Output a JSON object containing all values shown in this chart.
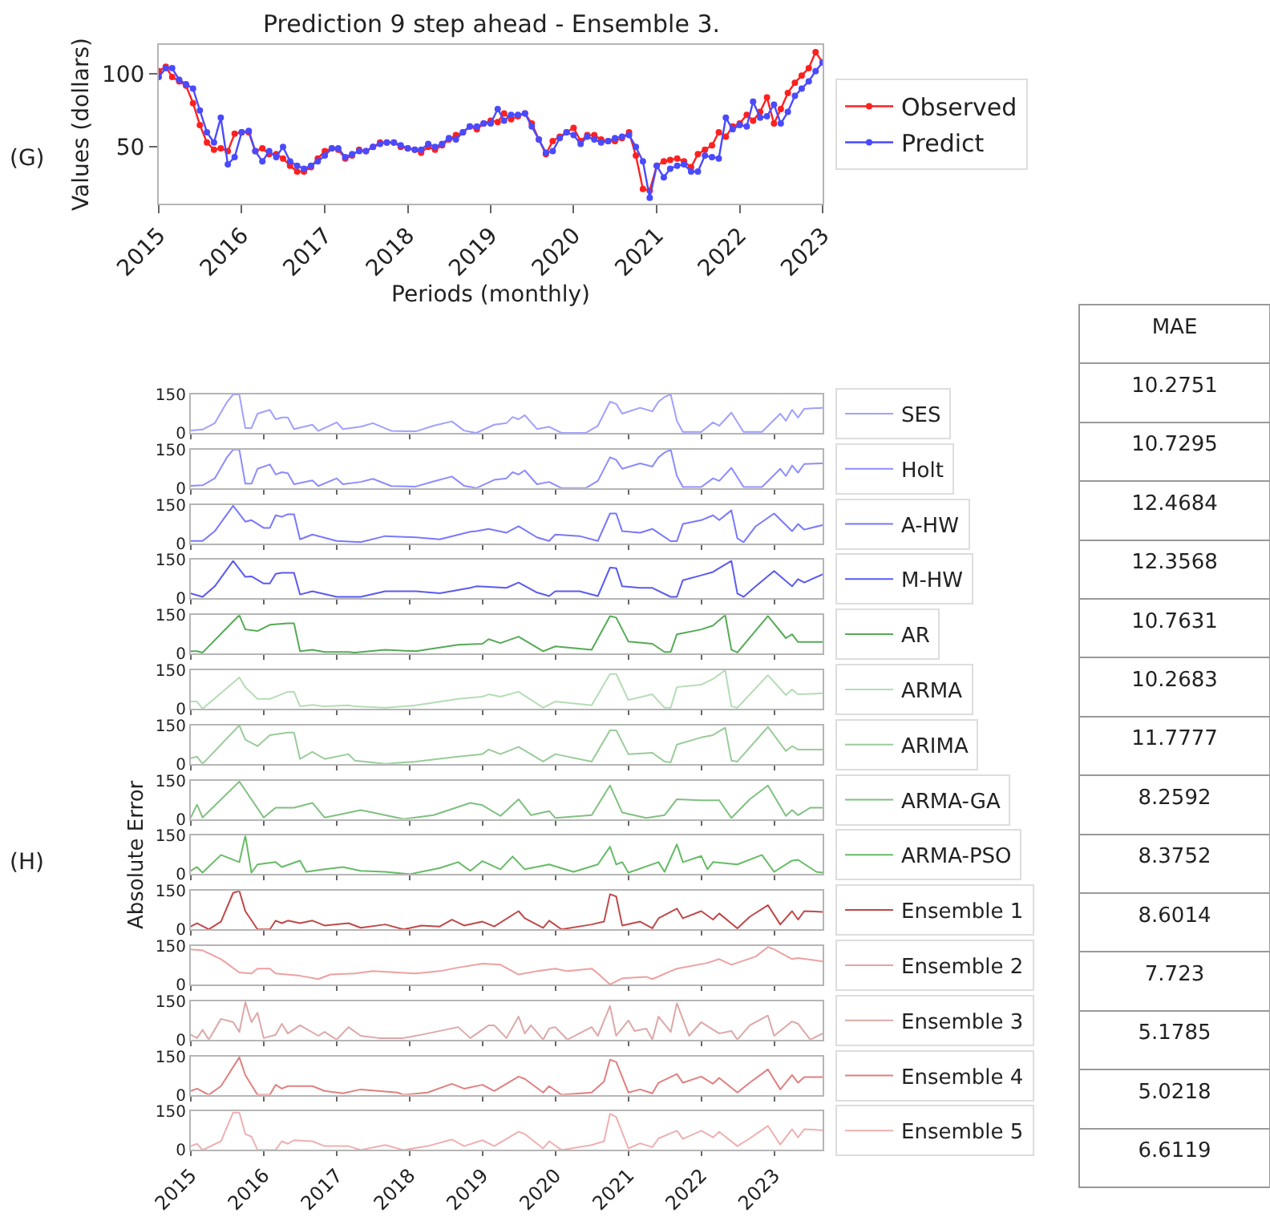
{
  "chart_data": [
    {
      "type": "line",
      "title": "Prediction 9 step ahead - Ensemble 3.",
      "xlabel": "Periods (monthly)",
      "ylabel": "Values (dollars)",
      "annotations": [
        "(G)"
      ],
      "marker": "circle",
      "legend": "right",
      "x": [
        "2015-01",
        "2015-02",
        "2015-03",
        "2015-04",
        "2015-05",
        "2015-06",
        "2015-07",
        "2015-08",
        "2015-09",
        "2015-10",
        "2015-11",
        "2015-12",
        "2016-01",
        "2016-02",
        "2016-03",
        "2016-04",
        "2016-05",
        "2016-06",
        "2016-07",
        "2016-08",
        "2016-09",
        "2016-10",
        "2016-11",
        "2016-12",
        "2017-01",
        "2017-02",
        "2017-03",
        "2017-04",
        "2017-05",
        "2017-06",
        "2017-07",
        "2017-08",
        "2017-09",
        "2017-10",
        "2017-11",
        "2017-12",
        "2018-01",
        "2018-02",
        "2018-03",
        "2018-04",
        "2018-05",
        "2018-06",
        "2018-07",
        "2018-08",
        "2018-09",
        "2018-10",
        "2018-11",
        "2018-12",
        "2019-01",
        "2019-02",
        "2019-03",
        "2019-04",
        "2019-05",
        "2019-06",
        "2019-07",
        "2019-08",
        "2019-09",
        "2019-10",
        "2019-11",
        "2019-12",
        "2020-01",
        "2020-02",
        "2020-03",
        "2020-04",
        "2020-05",
        "2020-06",
        "2020-07",
        "2020-08",
        "2020-09",
        "2020-10",
        "2020-11",
        "2020-12",
        "2021-01",
        "2021-02",
        "2021-03",
        "2021-04",
        "2021-05",
        "2021-06",
        "2021-07",
        "2021-08",
        "2021-09",
        "2021-10",
        "2021-11",
        "2021-12",
        "2022-01",
        "2022-02",
        "2022-03",
        "2022-04",
        "2022-05",
        "2022-06",
        "2022-07",
        "2022-08",
        "2022-09",
        "2022-10",
        "2022-11",
        "2022-12",
        "2023-01"
      ],
      "series": [
        {
          "name": "Observed",
          "color": "#ff2020",
          "values": [
            102,
            105,
            98,
            95,
            92,
            80,
            65,
            53,
            48,
            49,
            47,
            59,
            60,
            60,
            47,
            49,
            45,
            45,
            42,
            37,
            33,
            33,
            36,
            42,
            47,
            49,
            48,
            42,
            44,
            48,
            47,
            50,
            53,
            53,
            53,
            50,
            49,
            48,
            46,
            50,
            48,
            51,
            55,
            58,
            60,
            64,
            62,
            66,
            68,
            67,
            73,
            69,
            71,
            73,
            66,
            55,
            45,
            54,
            57,
            60,
            63,
            54,
            58,
            58,
            55,
            54,
            54,
            56,
            60,
            44,
            21,
            20,
            37,
            40,
            41,
            42,
            40,
            36,
            45,
            48,
            51,
            60,
            57,
            64,
            66,
            72,
            68,
            74,
            84,
            66,
            76,
            87,
            94,
            99,
            104,
            115,
            108
          ]
        },
        {
          "name": "Predict",
          "color": "#4a4aff",
          "values": [
            98,
            104,
            104,
            96,
            93,
            90,
            75,
            60,
            53,
            70,
            38,
            43,
            60,
            61,
            47,
            40,
            47,
            43,
            50,
            40,
            37,
            35,
            37,
            40,
            44,
            49,
            49,
            43,
            45,
            47,
            47,
            50,
            52,
            53,
            53,
            51,
            49,
            48,
            48,
            52,
            50,
            52,
            56,
            55,
            60,
            64,
            64,
            66,
            66,
            76,
            68,
            72,
            72,
            73,
            64,
            55,
            46,
            47,
            56,
            60,
            58,
            52,
            57,
            55,
            53,
            54,
            56,
            57,
            58,
            50,
            40,
            15,
            37,
            29,
            35,
            37,
            38,
            33,
            33,
            44,
            43,
            42,
            70,
            62,
            65,
            64,
            81,
            70,
            71,
            79,
            66,
            74,
            85,
            90,
            95,
            102,
            108
          ]
        }
      ],
      "xlim": [
        "2015-01",
        "2023-01"
      ],
      "xticks": [
        "2015",
        "2016",
        "2017",
        "2018",
        "2019",
        "2020",
        "2021",
        "2022",
        "2023"
      ],
      "ylim": [
        11,
        120
      ],
      "yticks": [
        50,
        100
      ]
    },
    {
      "type": "line",
      "legend": "right",
      "tick_labels": "y",
      "xlim": [
        "2015-01",
        "2023-09"
      ],
      "xticks": [
        "2015",
        "2016",
        "2017",
        "2018",
        "2019",
        "2020",
        "2021",
        "2022",
        "2023"
      ],
      "ylim": [
        0,
        150
      ],
      "yticks": [
        0,
        150
      ],
      "x": [
        "2015-01",
        "2015-03",
        "2015-05",
        "2015-07",
        "2015-08",
        "2015-09",
        "2015-10",
        "2015-11",
        "2015-12",
        "2016-02",
        "2016-03",
        "2016-04",
        "2016-05",
        "2016-06",
        "2016-09",
        "2016-10",
        "2017-01",
        "2017-02",
        "2017-05",
        "2017-07",
        "2017-10",
        "2018-02",
        "2018-05",
        "2018-08",
        "2018-10",
        "2018-12",
        "2019-03",
        "2019-05",
        "2019-06",
        "2019-07",
        "2019-08",
        "2019-10",
        "2019-12",
        "2020-02",
        "2020-06",
        "2020-08",
        "2020-10",
        "2020-11",
        "2020-12",
        "2021-03",
        "2021-05",
        "2021-06",
        "2021-07",
        "2021-08",
        "2021-09",
        "2021-10",
        "2022-01",
        "2022-03",
        "2022-04",
        "2022-06",
        "2022-08",
        "2022-11",
        "2023-02",
        "2023-03",
        "2023-04",
        "2023-05",
        "2023-06",
        "2023-09"
      ],
      "series": [
        {
          "name": "SES",
          "color": "#a0a0ff",
          "values": [
            9,
            13,
            38,
            120,
            150,
            150,
            19,
            19,
            75,
            90,
            53,
            60,
            60,
            15,
            32,
            8,
            41,
            15,
            24,
            38,
            8,
            6,
            28,
            45,
            9,
            0,
            32,
            38,
            62,
            53,
            69,
            15,
            24,
            0,
            0,
            28,
            122,
            113,
            75,
            98,
            84,
            122,
            140,
            150,
            47,
            4,
            4,
            41,
            28,
            79,
            4,
            4,
            75,
            47,
            90,
            60,
            94,
            98
          ]
        }
      ]
    },
    {
      "type": "line",
      "legend": "right",
      "tick_labels": "y",
      "xlim": [
        "2015-01",
        "2023-09"
      ],
      "xticks": [
        "2015",
        "2016",
        "2017",
        "2018",
        "2019",
        "2020",
        "2021",
        "2022",
        "2023"
      ],
      "ylim": [
        0,
        150
      ],
      "yticks": [
        0,
        150
      ],
      "x": [
        "2015-01",
        "2015-03",
        "2015-05",
        "2015-07",
        "2015-08",
        "2015-09",
        "2015-10",
        "2015-11",
        "2015-12",
        "2016-02",
        "2016-03",
        "2016-04",
        "2016-05",
        "2016-06",
        "2016-09",
        "2016-10",
        "2017-01",
        "2017-02",
        "2017-05",
        "2017-07",
        "2017-10",
        "2018-02",
        "2018-05",
        "2018-08",
        "2018-10",
        "2018-12",
        "2019-03",
        "2019-05",
        "2019-06",
        "2019-07",
        "2019-08",
        "2019-10",
        "2019-12",
        "2020-02",
        "2020-06",
        "2020-08",
        "2020-10",
        "2020-11",
        "2020-12",
        "2021-03",
        "2021-05",
        "2021-06",
        "2021-07",
        "2021-08",
        "2021-09",
        "2021-10",
        "2022-01",
        "2022-03",
        "2022-04",
        "2022-06",
        "2022-08",
        "2022-11",
        "2023-02",
        "2023-03",
        "2023-04",
        "2023-05",
        "2023-06",
        "2023-09"
      ],
      "series": [
        {
          "name": "Holt",
          "color": "#8c8cff",
          "values": [
            9,
            11,
            38,
            120,
            150,
            150,
            17,
            17,
            75,
            92,
            53,
            62,
            58,
            15,
            30,
            8,
            38,
            15,
            24,
            36,
            8,
            6,
            26,
            45,
            9,
            0,
            32,
            38,
            62,
            53,
            69,
            15,
            24,
            0,
            0,
            28,
            120,
            110,
            75,
            96,
            84,
            120,
            138,
            150,
            47,
            4,
            4,
            38,
            28,
            79,
            4,
            4,
            75,
            47,
            88,
            60,
            94,
            96
          ]
        }
      ]
    },
    {
      "type": "line",
      "legend": "right",
      "tick_labels": "y",
      "xlim": [
        "2015-01",
        "2023-09"
      ],
      "xticks": [
        "2015",
        "2016",
        "2017",
        "2018",
        "2019",
        "2020",
        "2021",
        "2022",
        "2023"
      ],
      "ylim": [
        0,
        150
      ],
      "yticks": [
        0,
        150
      ],
      "x": [
        "2015-01",
        "2015-03",
        "2015-05",
        "2015-08",
        "2015-10",
        "2015-11",
        "2016-01",
        "2016-02",
        "2016-03",
        "2016-04",
        "2016-05",
        "2016-06",
        "2016-07",
        "2016-09",
        "2017-01",
        "2017-05",
        "2017-09",
        "2018-02",
        "2018-06",
        "2018-11",
        "2018-12",
        "2019-02",
        "2019-05",
        "2019-07",
        "2019-10",
        "2019-12",
        "2020-01",
        "2020-05",
        "2020-08",
        "2020-10",
        "2020-11",
        "2020-12",
        "2021-03",
        "2021-05",
        "2021-08",
        "2021-09",
        "2021-10",
        "2022-01",
        "2022-03",
        "2022-04",
        "2022-06",
        "2022-07",
        "2022-08",
        "2022-10",
        "2023-01",
        "2023-04",
        "2023-05",
        "2023-06",
        "2023-09"
      ],
      "series": [
        {
          "name": "A-HW",
          "color": "#7878ff",
          "values": [
            9,
            9,
            47,
            146,
            84,
            90,
            60,
            60,
            109,
            103,
            113,
            113,
            15,
            34,
            9,
            4,
            28,
            23,
            15,
            45,
            47,
            56,
            41,
            66,
            23,
            9,
            34,
            28,
            9,
            116,
            116,
            47,
            41,
            56,
            8,
            8,
            75,
            90,
            109,
            90,
            128,
            19,
            4,
            66,
            116,
            47,
            75,
            53,
            71
          ]
        }
      ]
    },
    {
      "type": "line",
      "legend": "right",
      "tick_labels": "y",
      "xlim": [
        "2015-01",
        "2023-09"
      ],
      "xticks": [
        "2015",
        "2016",
        "2017",
        "2018",
        "2019",
        "2020",
        "2021",
        "2022",
        "2023"
      ],
      "ylim": [
        0,
        150
      ],
      "yticks": [
        0,
        150
      ],
      "x": [
        "2015-01",
        "2015-03",
        "2015-05",
        "2015-08",
        "2015-10",
        "2015-11",
        "2016-01",
        "2016-02",
        "2016-03",
        "2016-04",
        "2016-05",
        "2016-06",
        "2016-07",
        "2016-09",
        "2017-01",
        "2017-05",
        "2017-09",
        "2018-02",
        "2018-06",
        "2018-11",
        "2018-12",
        "2019-02",
        "2019-05",
        "2019-07",
        "2019-10",
        "2019-12",
        "2020-01",
        "2020-05",
        "2020-08",
        "2020-10",
        "2020-11",
        "2020-12",
        "2021-03",
        "2021-05",
        "2021-08",
        "2021-09",
        "2021-10",
        "2022-01",
        "2022-03",
        "2022-04",
        "2022-06",
        "2022-07",
        "2022-08",
        "2022-10",
        "2023-01",
        "2023-04",
        "2023-05",
        "2023-06",
        "2023-09"
      ],
      "series": [
        {
          "name": "M-HW",
          "color": "#5a5af0",
          "values": [
            19,
            6,
            47,
            146,
            84,
            86,
            58,
            58,
            96,
            100,
            100,
            100,
            15,
            28,
            6,
            6,
            28,
            28,
            20,
            41,
            47,
            45,
            41,
            62,
            23,
            9,
            28,
            28,
            9,
            120,
            118,
            47,
            41,
            41,
            6,
            6,
            71,
            90,
            103,
            118,
            146,
            19,
            6,
            47,
            107,
            47,
            75,
            62,
            94
          ]
        }
      ]
    },
    {
      "type": "line",
      "legend": "right",
      "tick_labels": "y",
      "xlim": [
        "2015-01",
        "2023-09"
      ],
      "xticks": [
        "2015",
        "2016",
        "2017",
        "2018",
        "2019",
        "2020",
        "2021",
        "2022",
        "2023"
      ],
      "ylim": [
        0,
        150
      ],
      "yticks": [
        0,
        150
      ],
      "x": [
        "2015-01",
        "2015-02",
        "2015-03",
        "2015-09",
        "2015-10",
        "2015-12",
        "2016-02",
        "2016-05",
        "2016-06",
        "2016-07",
        "2016-09",
        "2016-11",
        "2017-03",
        "2017-04",
        "2017-09",
        "2018-02",
        "2018-09",
        "2019-01",
        "2019-02",
        "2019-04",
        "2019-07",
        "2019-11",
        "2020-01",
        "2020-07",
        "2020-10",
        "2020-11",
        "2021-01",
        "2021-05",
        "2021-07",
        "2021-08",
        "2021-09",
        "2022-01",
        "2022-03",
        "2022-05",
        "2022-06",
        "2022-07",
        "2022-12",
        "2023-03",
        "2023-04",
        "2023-05",
        "2023-09"
      ],
      "series": [
        {
          "name": "AR",
          "color": "#55aa55",
          "values": [
            9,
            9,
            4,
            150,
            94,
            88,
            112,
            118,
            118,
            9,
            15,
            6,
            6,
            4,
            15,
            9,
            34,
            38,
            56,
            41,
            66,
            9,
            28,
            15,
            146,
            140,
            47,
            38,
            6,
            6,
            75,
            94,
            109,
            150,
            15,
            4,
            146,
            60,
            75,
            45,
            45
          ]
        }
      ]
    },
    {
      "type": "line",
      "legend": "right",
      "tick_labels": "y",
      "xlim": [
        "2015-01",
        "2023-09"
      ],
      "xticks": [
        "2015",
        "2016",
        "2017",
        "2018",
        "2019",
        "2020",
        "2021",
        "2022",
        "2023"
      ],
      "ylim": [
        0,
        150
      ],
      "yticks": [
        0,
        150
      ],
      "x": [
        "2015-01",
        "2015-02",
        "2015-03",
        "2015-09",
        "2015-10",
        "2015-12",
        "2016-02",
        "2016-05",
        "2016-06",
        "2016-07",
        "2016-09",
        "2016-11",
        "2017-03",
        "2017-04",
        "2017-09",
        "2018-02",
        "2018-09",
        "2019-01",
        "2019-02",
        "2019-04",
        "2019-07",
        "2019-11",
        "2020-01",
        "2020-07",
        "2020-10",
        "2020-11",
        "2021-01",
        "2021-05",
        "2021-07",
        "2021-08",
        "2021-09",
        "2022-01",
        "2022-03",
        "2022-05",
        "2022-06",
        "2022-07",
        "2022-12",
        "2023-03",
        "2023-04",
        "2023-05",
        "2023-09"
      ],
      "series": [
        {
          "name": "ARMA",
          "color": "#b5dcb5",
          "values": [
            28,
            28,
            0,
            122,
            84,
            38,
            38,
            66,
            66,
            9,
            15,
            9,
            13,
            9,
            4,
            13,
            38,
            47,
            56,
            47,
            66,
            4,
            28,
            13,
            135,
            135,
            34,
            56,
            4,
            4,
            84,
            94,
            116,
            150,
            9,
            4,
            131,
            53,
            75,
            56,
            60
          ]
        }
      ]
    },
    {
      "type": "line",
      "legend": "right",
      "tick_labels": "y",
      "xlim": [
        "2015-01",
        "2023-09"
      ],
      "xticks": [
        "2015",
        "2016",
        "2017",
        "2018",
        "2019",
        "2020",
        "2021",
        "2022",
        "2023"
      ],
      "ylim": [
        0,
        150
      ],
      "yticks": [
        0,
        150
      ],
      "x": [
        "2015-01",
        "2015-02",
        "2015-03",
        "2015-09",
        "2015-10",
        "2015-12",
        "2016-02",
        "2016-05",
        "2016-06",
        "2016-07",
        "2016-09",
        "2016-11",
        "2017-03",
        "2017-04",
        "2017-09",
        "2018-02",
        "2018-09",
        "2019-01",
        "2019-02",
        "2019-04",
        "2019-07",
        "2019-11",
        "2020-01",
        "2020-07",
        "2020-10",
        "2020-11",
        "2021-01",
        "2021-05",
        "2021-07",
        "2021-08",
        "2021-09",
        "2022-01",
        "2022-03",
        "2022-05",
        "2022-06",
        "2022-07",
        "2022-12",
        "2023-03",
        "2023-04",
        "2023-05",
        "2023-09"
      ],
      "series": [
        {
          "name": "ARIMA",
          "color": "#99cc99",
          "values": [
            22,
            28,
            0,
            150,
            94,
            69,
            112,
            122,
            122,
            19,
            47,
            19,
            38,
            13,
            0,
            9,
            28,
            38,
            56,
            38,
            66,
            9,
            38,
            9,
            131,
            131,
            38,
            43,
            9,
            6,
            75,
            103,
            112,
            141,
            13,
            9,
            144,
            50,
            69,
            56,
            56
          ]
        }
      ]
    },
    {
      "type": "line",
      "legend": "right",
      "tick_labels": "y",
      "xlim": [
        "2015-01",
        "2023-09"
      ],
      "xticks": [
        "2015",
        "2016",
        "2017",
        "2018",
        "2019",
        "2020",
        "2021",
        "2022",
        "2023"
      ],
      "ylim": [
        0,
        150
      ],
      "yticks": [
        0,
        150
      ],
      "x": [
        "2015-01",
        "2015-02",
        "2015-03",
        "2015-09",
        "2015-10",
        "2016-01",
        "2016-03",
        "2016-06",
        "2016-09",
        "2016-11",
        "2017-01",
        "2017-05",
        "2017-07",
        "2017-12",
        "2018-05",
        "2018-11",
        "2019-01",
        "2019-04",
        "2019-07",
        "2019-09",
        "2019-12",
        "2020-01",
        "2020-07",
        "2020-10",
        "2020-12",
        "2021-04",
        "2021-07",
        "2021-09",
        "2022-01",
        "2022-04",
        "2022-06",
        "2022-09",
        "2022-12",
        "2023-03",
        "2023-04",
        "2023-05",
        "2023-07",
        "2023-09"
      ],
      "series": [
        {
          "name": "ARMA-GA",
          "color": "#80c080",
          "values": [
            6,
            56,
            6,
            146,
            112,
            6,
            44,
            44,
            63,
            6,
            15,
            35,
            25,
            0,
            15,
            63,
            54,
            12,
            77,
            15,
            31,
            4,
            15,
            131,
            25,
            4,
            15,
            77,
            73,
            73,
            4,
            77,
            131,
            12,
            35,
            15,
            44,
            44
          ]
        }
      ]
    },
    {
      "type": "line",
      "legend": "right",
      "tick_labels": "y",
      "ylabel": "Absolute Error",
      "annotations": [
        "(H)"
      ],
      "xlim": [
        "2015-01",
        "2023-09"
      ],
      "xticks": [
        "2015",
        "2016",
        "2017",
        "2018",
        "2019",
        "2020",
        "2021",
        "2022",
        "2023"
      ],
      "ylim": [
        0,
        150
      ],
      "yticks": [
        0,
        150
      ],
      "x": [
        "2015-01",
        "2015-02",
        "2015-03",
        "2015-06",
        "2015-09",
        "2015-10",
        "2015-11",
        "2015-12",
        "2016-03",
        "2016-04",
        "2016-07",
        "2016-08",
        "2016-11",
        "2017-02",
        "2017-05",
        "2017-09",
        "2018-01",
        "2018-06",
        "2018-09",
        "2018-11",
        "2019-01",
        "2019-04",
        "2019-06",
        "2019-08",
        "2019-12",
        "2020-04",
        "2020-08",
        "2020-10",
        "2020-11",
        "2020-12",
        "2021-01",
        "2021-06",
        "2021-07",
        "2021-09",
        "2021-10",
        "2022-01",
        "2022-02",
        "2022-03",
        "2022-07",
        "2022-11",
        "2023-01",
        "2023-04",
        "2023-05",
        "2023-08",
        "2023-09"
      ],
      "series": [
        {
          "name": "ARMA-PSO",
          "color": "#66bb66",
          "values": [
            13,
            28,
            6,
            75,
            47,
            150,
            6,
            38,
            47,
            28,
            53,
            9,
            19,
            28,
            13,
            9,
            0,
            24,
            47,
            13,
            51,
            19,
            69,
            19,
            38,
            9,
            38,
            107,
            38,
            47,
            6,
            47,
            9,
            116,
            47,
            71,
            19,
            47,
            38,
            75,
            9,
            53,
            56,
            9,
            6
          ]
        }
      ]
    },
    {
      "type": "line",
      "legend": "right",
      "tick_labels": "y",
      "xlim": [
        "2015-01",
        "2023-09"
      ],
      "xticks": [
        "2015",
        "2016",
        "2017",
        "2018",
        "2019",
        "2020",
        "2021",
        "2022",
        "2023"
      ],
      "ylim": [
        0,
        150
      ],
      "yticks": [
        0,
        150
      ],
      "x": [
        "2015-01",
        "2015-02",
        "2015-04",
        "2015-06",
        "2015-08",
        "2015-09",
        "2015-10",
        "2015-12",
        "2016-02",
        "2016-03",
        "2016-04",
        "2016-05",
        "2016-07",
        "2016-09",
        "2016-11",
        "2017-03",
        "2017-05",
        "2017-09",
        "2017-12",
        "2018-03",
        "2018-06",
        "2018-08",
        "2018-10",
        "2019-01",
        "2019-03",
        "2019-07",
        "2019-08",
        "2019-11",
        "2019-12",
        "2020-02",
        "2020-07",
        "2020-09",
        "2020-10",
        "2020-11",
        "2020-12",
        "2021-03",
        "2021-05",
        "2021-06",
        "2021-09",
        "2021-10",
        "2022-01",
        "2022-03",
        "2022-04",
        "2022-07",
        "2022-09",
        "2022-12",
        "2023-02",
        "2023-04",
        "2023-05",
        "2023-06",
        "2023-09"
      ],
      "series": [
        {
          "name": "Ensemble 1",
          "color": "#c04848",
          "values": [
            11,
            24,
            0,
            30,
            142,
            150,
            71,
            0,
            0,
            34,
            24,
            34,
            24,
            34,
            15,
            24,
            6,
            19,
            0,
            15,
            11,
            38,
            15,
            30,
            11,
            71,
            43,
            6,
            34,
            0,
            19,
            30,
            137,
            128,
            15,
            30,
            4,
            43,
            81,
            43,
            71,
            38,
            62,
            4,
            49,
            94,
            19,
            71,
            38,
            71,
            68
          ]
        }
      ]
    },
    {
      "type": "line",
      "legend": "right",
      "tick_labels": "y",
      "xlim": [
        "2015-01",
        "2023-09"
      ],
      "xticks": [
        "2015",
        "2016",
        "2017",
        "2018",
        "2019",
        "2020",
        "2021",
        "2022",
        "2023"
      ],
      "ylim": [
        0,
        150
      ],
      "yticks": [
        0,
        150
      ],
      "x": [
        "2015-01",
        "2015-03",
        "2015-06",
        "2015-09",
        "2015-11",
        "2015-12",
        "2016-02",
        "2016-03",
        "2016-07",
        "2016-10",
        "2016-12",
        "2017-04",
        "2017-07",
        "2017-11",
        "2018-02",
        "2018-06",
        "2018-09",
        "2019-01",
        "2019-04",
        "2019-07",
        "2019-10",
        "2020-01",
        "2020-03",
        "2020-07",
        "2020-08",
        "2020-10",
        "2020-12",
        "2021-04",
        "2021-05",
        "2021-09",
        "2022-02",
        "2022-04",
        "2022-06",
        "2022-10",
        "2022-12",
        "2023-01",
        "2023-04",
        "2023-05",
        "2023-09"
      ],
      "series": [
        {
          "name": "Ensemble 2",
          "color": "#eea0a0",
          "values": [
            137,
            133,
            99,
            47,
            43,
            62,
            62,
            43,
            34,
            21,
            39,
            43,
            52,
            47,
            43,
            52,
            66,
            81,
            77,
            39,
            52,
            62,
            52,
            62,
            43,
            0,
            24,
            30,
            21,
            62,
            84,
            99,
            77,
            109,
            146,
            137,
            99,
            103,
            90
          ]
        }
      ]
    },
    {
      "type": "line",
      "legend": "right",
      "tick_labels": "y",
      "xlim": [
        "2015-01",
        "2023-09"
      ],
      "xticks": [
        "2015",
        "2016",
        "2017",
        "2018",
        "2019",
        "2020",
        "2021",
        "2022",
        "2023"
      ],
      "ylim": [
        0,
        150
      ],
      "yticks": [
        0,
        150
      ],
      "x": [
        "2015-01",
        "2015-02",
        "2015-03",
        "2015-04",
        "2015-06",
        "2015-08",
        "2015-09",
        "2015-10",
        "2015-11",
        "2015-12",
        "2016-01",
        "2016-03",
        "2016-04",
        "2016-05",
        "2016-07",
        "2016-10",
        "2016-11",
        "2017-01",
        "2017-03",
        "2017-05",
        "2017-08",
        "2017-12",
        "2018-04",
        "2018-09",
        "2018-11",
        "2019-02",
        "2019-03",
        "2019-05",
        "2019-07",
        "2019-08",
        "2019-09",
        "2019-11",
        "2019-12",
        "2020-01",
        "2020-03",
        "2020-07",
        "2020-08",
        "2020-10",
        "2020-11",
        "2021-01",
        "2021-02",
        "2021-04",
        "2021-05",
        "2021-06",
        "2021-08",
        "2021-09",
        "2021-11",
        "2022-01",
        "2022-04",
        "2022-06",
        "2022-07",
        "2022-09",
        "2022-12",
        "2023-01",
        "2023-04",
        "2023-05",
        "2023-07",
        "2023-09"
      ],
      "series": [
        {
          "name": "Ensemble 3",
          "color": "#dca8a8",
          "values": [
            19,
            6,
            38,
            0,
            81,
            68,
            30,
            146,
            68,
            105,
            6,
            19,
            62,
            24,
            56,
            15,
            30,
            0,
            49,
            15,
            6,
            6,
            24,
            49,
            6,
            56,
            56,
            6,
            90,
            24,
            56,
            0,
            43,
            49,
            0,
            49,
            15,
            131,
            15,
            75,
            34,
            43,
            0,
            90,
            30,
            142,
            15,
            68,
            24,
            34,
            0,
            56,
            94,
            15,
            71,
            62,
            0,
            24
          ]
        }
      ]
    },
    {
      "type": "line",
      "legend": "right",
      "tick_labels": "y",
      "xlim": [
        "2015-01",
        "2023-09"
      ],
      "xticks": [
        "2015",
        "2016",
        "2017",
        "2018",
        "2019",
        "2020",
        "2021",
        "2022",
        "2023"
      ],
      "ylim": [
        0,
        150
      ],
      "yticks": [
        0,
        150
      ],
      "x": [
        "2015-01",
        "2015-02",
        "2015-04",
        "2015-06",
        "2015-09",
        "2015-10",
        "2015-12",
        "2016-02",
        "2016-03",
        "2016-04",
        "2016-05",
        "2016-09",
        "2016-11",
        "2017-02",
        "2017-05",
        "2017-11",
        "2017-12",
        "2018-04",
        "2018-08",
        "2018-10",
        "2019-01",
        "2019-03",
        "2019-07",
        "2019-08",
        "2019-11",
        "2019-12",
        "2020-02",
        "2020-07",
        "2020-09",
        "2020-10",
        "2020-11",
        "2021-01",
        "2021-03",
        "2021-05",
        "2021-06",
        "2021-09",
        "2021-10",
        "2022-01",
        "2022-03",
        "2022-04",
        "2022-07",
        "2022-09",
        "2022-12",
        "2023-02",
        "2023-04",
        "2023-05",
        "2023-06",
        "2023-09"
      ],
      "series": [
        {
          "name": "Ensemble 4",
          "color": "#e08080",
          "values": [
            15,
            24,
            0,
            34,
            146,
            77,
            0,
            0,
            39,
            24,
            34,
            34,
            15,
            6,
            21,
            9,
            0,
            9,
            43,
            24,
            39,
            15,
            71,
            62,
            9,
            34,
            0,
            9,
            52,
            137,
            128,
            9,
            21,
            6,
            47,
            81,
            47,
            71,
            43,
            66,
            9,
            47,
            99,
            21,
            77,
            47,
            69,
            69
          ]
        }
      ]
    },
    {
      "type": "line",
      "legend": "right",
      "xlim": [
        "2015-01",
        "2023-09"
      ],
      "xticks": [
        "2015",
        "2016",
        "2017",
        "2018",
        "2019",
        "2020",
        "2021",
        "2022",
        "2023"
      ],
      "ylim": [
        0,
        150
      ],
      "yticks": [
        0,
        150
      ],
      "x": [
        "2015-01",
        "2015-02",
        "2015-03",
        "2015-06",
        "2015-08",
        "2015-09",
        "2015-10",
        "2015-11",
        "2015-12",
        "2016-03",
        "2016-04",
        "2016-05",
        "2016-06",
        "2016-09",
        "2016-11",
        "2017-03",
        "2017-05",
        "2017-09",
        "2017-12",
        "2018-04",
        "2018-08",
        "2018-10",
        "2019-01",
        "2019-03",
        "2019-07",
        "2019-08",
        "2019-11",
        "2019-12",
        "2020-02",
        "2020-07",
        "2020-09",
        "2020-10",
        "2020-11",
        "2021-01",
        "2021-03",
        "2021-05",
        "2021-06",
        "2021-09",
        "2021-10",
        "2022-01",
        "2022-03",
        "2022-04",
        "2022-07",
        "2022-09",
        "2022-12",
        "2023-02",
        "2023-04",
        "2023-05",
        "2023-06",
        "2023-09"
      ],
      "series": [
        {
          "name": "Ensemble 5",
          "color": "#eeb0b0",
          "values": [
            15,
            24,
            0,
            34,
            146,
            146,
            62,
            52,
            0,
            0,
            34,
            24,
            38,
            34,
            15,
            15,
            0,
            19,
            0,
            15,
            41,
            15,
            38,
            15,
            71,
            62,
            6,
            34,
            0,
            19,
            34,
            141,
            128,
            6,
            26,
            11,
            45,
            75,
            43,
            75,
            49,
            71,
            15,
            45,
            94,
            21,
            81,
            49,
            81,
            77
          ]
        }
      ]
    },
    {
      "type": "other",
      "title": "MAE",
      "annotations": [
        "10.2751",
        "10.7295",
        "12.4684",
        "12.3568",
        "10.7631",
        "10.2683",
        "11.7777",
        "8.2592",
        "8.3752",
        "8.6014",
        "7.723",
        "5.1785",
        "5.0218",
        "6.6119"
      ]
    }
  ]
}
